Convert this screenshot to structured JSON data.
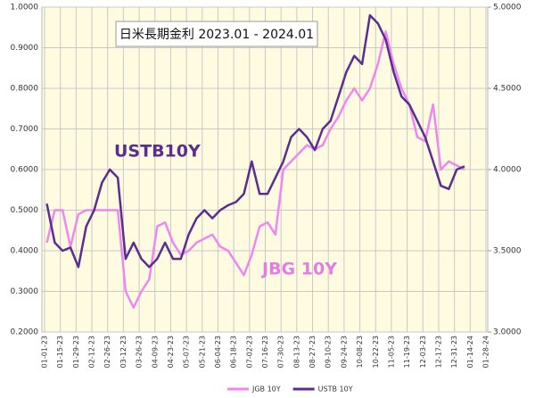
{
  "chart_data": {
    "type": "line",
    "title": "日米長期金利 2023.01 - 2024.01",
    "annotations": [
      "USTB10Y",
      "JBG 10Y"
    ],
    "x": [
      "2023-01-03",
      "2023-01-10",
      "2023-01-17",
      "2023-01-24",
      "2023-01-31",
      "2023-02-07",
      "2023-02-14",
      "2023-02-21",
      "2023-02-28",
      "2023-03-07",
      "2023-03-14",
      "2023-03-21",
      "2023-03-28",
      "2023-04-04",
      "2023-04-11",
      "2023-04-18",
      "2023-04-25",
      "2023-05-02",
      "2023-05-09",
      "2023-05-16",
      "2023-05-23",
      "2023-05-30",
      "2023-06-06",
      "2023-06-13",
      "2023-06-20",
      "2023-06-27",
      "2023-07-04",
      "2023-07-11",
      "2023-07-18",
      "2023-07-25",
      "2023-08-01",
      "2023-08-08",
      "2023-08-15",
      "2023-08-22",
      "2023-08-29",
      "2023-09-05",
      "2023-09-12",
      "2023-09-19",
      "2023-09-26",
      "2023-10-03",
      "2023-10-10",
      "2023-10-17",
      "2023-10-24",
      "2023-10-31",
      "2023-11-07",
      "2023-11-14",
      "2023-11-21",
      "2023-11-28",
      "2023-12-05",
      "2023-12-12",
      "2023-12-19",
      "2023-12-26",
      "2024-01-02",
      "2024-01-09"
    ],
    "series": [
      {
        "name": "JGB 10Y",
        "color": "#ee88ee",
        "values": [
          0.42,
          0.5,
          0.5,
          0.41,
          0.49,
          0.5,
          0.5,
          0.5,
          0.5,
          0.5,
          0.3,
          0.26,
          0.3,
          0.33,
          0.46,
          0.47,
          0.42,
          0.39,
          0.4,
          0.42,
          0.43,
          0.44,
          0.41,
          0.4,
          0.37,
          0.34,
          0.39,
          0.46,
          0.47,
          0.44,
          0.6,
          0.62,
          0.64,
          0.66,
          0.65,
          0.66,
          0.7,
          0.73,
          0.77,
          0.8,
          0.77,
          0.8,
          0.86,
          0.94,
          0.86,
          0.8,
          0.76,
          0.68,
          0.67,
          0.76,
          0.6,
          0.62,
          0.61,
          0.6
        ]
      },
      {
        "name": "USTB 10Y",
        "color": "#5b2d8e",
        "axis": "y2",
        "values": [
          3.79,
          3.55,
          3.5,
          3.52,
          3.4,
          3.65,
          3.75,
          3.92,
          4.0,
          3.95,
          3.45,
          3.55,
          3.45,
          3.4,
          3.45,
          3.55,
          3.45,
          3.45,
          3.6,
          3.7,
          3.75,
          3.7,
          3.75,
          3.78,
          3.8,
          3.85,
          4.05,
          3.85,
          3.85,
          3.95,
          4.05,
          4.2,
          4.25,
          4.2,
          4.12,
          4.25,
          4.3,
          4.45,
          4.6,
          4.7,
          4.65,
          4.95,
          4.9,
          4.8,
          4.6,
          4.45,
          4.4,
          4.3,
          4.2,
          4.05,
          3.9,
          3.88,
          4.0,
          4.02
        ]
      }
    ],
    "xlim": [
      "2023-01-01",
      "2024-01-28"
    ],
    "xticks": [
      {
        "value": "2023-01-01",
        "label": "01-01-23"
      },
      {
        "value": "2023-01-15",
        "label": "01-15-23"
      },
      {
        "value": "2023-01-29",
        "label": "01-29-23"
      },
      {
        "value": "2023-02-12",
        "label": "02-12-23"
      },
      {
        "value": "2023-02-26",
        "label": "02-26-23"
      },
      {
        "value": "2023-03-12",
        "label": "03-12-23"
      },
      {
        "value": "2023-03-26",
        "label": "03-26-23"
      },
      {
        "value": "2023-04-09",
        "label": "04-09-23"
      },
      {
        "value": "2023-04-23",
        "label": "04-23-23"
      },
      {
        "value": "2023-05-07",
        "label": "05-07-23"
      },
      {
        "value": "2023-05-21",
        "label": "05-21-23"
      },
      {
        "value": "2023-06-04",
        "label": "06-04-23"
      },
      {
        "value": "2023-06-18",
        "label": "06-18-23"
      },
      {
        "value": "2023-07-02",
        "label": "07-02-23"
      },
      {
        "value": "2023-07-16",
        "label": "07-16-23"
      },
      {
        "value": "2023-07-30",
        "label": "07-30-23"
      },
      {
        "value": "2023-08-13",
        "label": "08-13-23"
      },
      {
        "value": "2023-08-27",
        "label": "08-27-23"
      },
      {
        "value": "2023-09-10",
        "label": "09-10-23"
      },
      {
        "value": "2023-09-24",
        "label": "09-24-23"
      },
      {
        "value": "2023-10-08",
        "label": "10-08-23"
      },
      {
        "value": "2023-10-22",
        "label": "10-22-23"
      },
      {
        "value": "2023-11-05",
        "label": "11-05-23"
      },
      {
        "value": "2023-11-19",
        "label": "11-19-23"
      },
      {
        "value": "2023-12-03",
        "label": "12-03-23"
      },
      {
        "value": "2023-12-17",
        "label": "12-17-23"
      },
      {
        "value": "2023-12-31",
        "label": "12-31-23"
      },
      {
        "value": "2024-01-14",
        "label": "01-14-24"
      },
      {
        "value": "2024-01-28",
        "label": "01-28-24"
      }
    ],
    "ylim": [
      0.2,
      1.0
    ],
    "yticks": [
      {
        "value": 0.2,
        "label": "0.2000"
      },
      {
        "value": 0.3,
        "label": "0.3000"
      },
      {
        "value": 0.4,
        "label": "0.4000"
      },
      {
        "value": 0.5,
        "label": "0.5000"
      },
      {
        "value": 0.6,
        "label": "0.6000"
      },
      {
        "value": 0.7,
        "label": "0.7000"
      },
      {
        "value": 0.8,
        "label": "0.8000"
      },
      {
        "value": 0.9,
        "label": "0.9000"
      },
      {
        "value": 1.0,
        "label": "1.0000"
      }
    ],
    "y2lim": [
      3.0,
      5.0
    ],
    "y2ticks": [
      {
        "value": 3.0,
        "label": "3.0000"
      },
      {
        "value": 3.5,
        "label": "3.5000"
      },
      {
        "value": 4.0,
        "label": "4.0000"
      },
      {
        "value": 4.5,
        "label": "4.5000"
      },
      {
        "value": 5.0,
        "label": "5.0000"
      }
    ],
    "grid": true
  }
}
